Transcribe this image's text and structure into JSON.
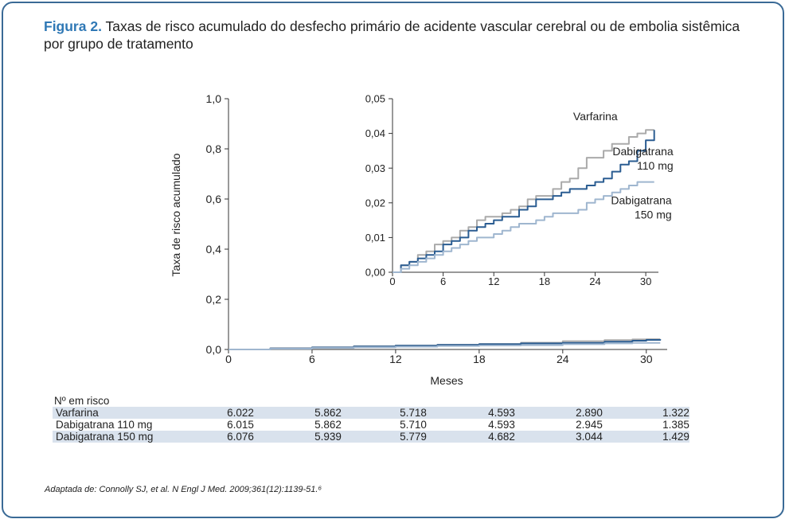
{
  "figure": {
    "label": "Figura 2.",
    "title": "Taxas de risco acumulado do desfecho primário de acidente vascular cerebral ou de embolia sistêmica por grupo de tratamento"
  },
  "colors": {
    "frame": "#3a6a96",
    "title_accent": "#2f78b5",
    "varfarina": "#aaaaaa",
    "dabigatrana_110": "#2b5d92",
    "dabigatrana_150": "#9fb6cf",
    "table_shade": "#d9e2ed"
  },
  "chart_data": [
    {
      "id": "main",
      "type": "line",
      "xlabel": "Meses",
      "ylabel": "Taxa de risco acumulado",
      "xlim": [
        0,
        31.5
      ],
      "ylim": [
        0,
        1.0
      ],
      "x_ticks": [
        0,
        6,
        12,
        18,
        24,
        30
      ],
      "x_tick_labels": [
        "0",
        "6",
        "12",
        "18",
        "24",
        "30"
      ],
      "y_ticks": [
        0,
        0.2,
        0.4,
        0.6,
        0.8,
        1.0
      ],
      "y_tick_labels": [
        "0,0",
        "0,2",
        "0,4",
        "0,6",
        "0,8",
        "1,0"
      ],
      "series": [
        {
          "name": "Varfarina",
          "color": "#aaaaaa",
          "x": [
            0,
            3,
            6,
            9,
            12,
            15,
            18,
            21,
            24,
            27,
            29,
            30,
            31
          ],
          "y": [
            0,
            0.005,
            0.009,
            0.013,
            0.016,
            0.019,
            0.022,
            0.027,
            0.033,
            0.037,
            0.04,
            0.041,
            0.041
          ]
        },
        {
          "name": "Dabigatrana 110 mg",
          "color": "#2b5d92",
          "x": [
            0,
            3,
            6,
            9,
            12,
            15,
            18,
            21,
            24,
            27,
            29,
            30,
            31
          ],
          "y": [
            0,
            0.004,
            0.008,
            0.012,
            0.015,
            0.018,
            0.021,
            0.024,
            0.026,
            0.031,
            0.035,
            0.038,
            0.041
          ]
        },
        {
          "name": "Dabigatrana 150 mg",
          "color": "#9fb6cf",
          "x": [
            0,
            3,
            6,
            9,
            12,
            15,
            18,
            21,
            24,
            27,
            29,
            30,
            31
          ],
          "y": [
            0,
            0.003,
            0.006,
            0.009,
            0.011,
            0.014,
            0.016,
            0.017,
            0.021,
            0.024,
            0.026,
            0.026,
            0.026
          ]
        }
      ]
    },
    {
      "id": "inset",
      "type": "line",
      "xlim": [
        0,
        31.5
      ],
      "ylim": [
        0,
        0.05
      ],
      "x_ticks": [
        0,
        6,
        12,
        18,
        24,
        30
      ],
      "x_tick_labels": [
        "0",
        "6",
        "12",
        "18",
        "24",
        "30"
      ],
      "y_ticks": [
        0,
        0.01,
        0.02,
        0.03,
        0.04,
        0.05
      ],
      "y_tick_labels": [
        "0,00",
        "0,01",
        "0,02",
        "0,03",
        "0,04",
        "0,05"
      ],
      "annotations": [
        {
          "series": "Varfarina",
          "lines": [
            "Varfarina"
          ]
        },
        {
          "series": "Dabigatrana 110 mg",
          "lines": [
            "Dabigatrana",
            "110 mg"
          ]
        },
        {
          "series": "Dabigatrana 150 mg",
          "lines": [
            "Dabigatrana",
            "150 mg"
          ]
        }
      ],
      "series": [
        {
          "name": "Varfarina",
          "color": "#aaaaaa",
          "x": [
            0,
            1,
            2,
            3,
            4,
            5,
            6,
            7,
            8,
            9,
            10,
            11,
            12,
            13,
            14,
            15,
            16,
            17,
            18,
            19,
            20,
            21,
            22,
            23,
            24,
            25,
            26,
            27,
            28,
            29,
            30,
            31
          ],
          "y": [
            0,
            0.002,
            0.003,
            0.005,
            0.006,
            0.008,
            0.009,
            0.01,
            0.012,
            0.013,
            0.015,
            0.016,
            0.016,
            0.017,
            0.018,
            0.019,
            0.021,
            0.022,
            0.022,
            0.024,
            0.026,
            0.027,
            0.03,
            0.033,
            0.033,
            0.035,
            0.037,
            0.037,
            0.039,
            0.04,
            0.041,
            0.041
          ]
        },
        {
          "name": "Dabigatrana 110 mg",
          "color": "#2b5d92",
          "x": [
            0,
            1,
            2,
            3,
            4,
            5,
            6,
            7,
            8,
            9,
            10,
            11,
            12,
            13,
            14,
            15,
            16,
            17,
            18,
            19,
            20,
            21,
            22,
            23,
            24,
            25,
            26,
            27,
            28,
            29,
            30,
            31
          ],
          "y": [
            0,
            0.002,
            0.003,
            0.004,
            0.005,
            0.006,
            0.008,
            0.009,
            0.01,
            0.012,
            0.013,
            0.014,
            0.015,
            0.016,
            0.016,
            0.018,
            0.019,
            0.021,
            0.021,
            0.022,
            0.023,
            0.024,
            0.024,
            0.025,
            0.026,
            0.027,
            0.029,
            0.031,
            0.032,
            0.035,
            0.038,
            0.041
          ]
        },
        {
          "name": "Dabigatrana 150 mg",
          "color": "#9fb6cf",
          "x": [
            0,
            1,
            2,
            3,
            4,
            5,
            6,
            7,
            8,
            9,
            10,
            11,
            12,
            13,
            14,
            15,
            16,
            17,
            18,
            19,
            20,
            21,
            22,
            23,
            24,
            25,
            26,
            27,
            28,
            29,
            30,
            31
          ],
          "y": [
            0,
            0.001,
            0.002,
            0.003,
            0.004,
            0.005,
            0.006,
            0.007,
            0.008,
            0.009,
            0.01,
            0.01,
            0.011,
            0.012,
            0.013,
            0.014,
            0.014,
            0.015,
            0.016,
            0.017,
            0.017,
            0.017,
            0.018,
            0.02,
            0.021,
            0.022,
            0.023,
            0.024,
            0.025,
            0.026,
            0.026,
            0.026
          ]
        }
      ]
    }
  ],
  "risk_table": {
    "title": "Nº em risco",
    "rows": [
      {
        "label": "Varfarina",
        "values": [
          "6.022",
          "5.862",
          "5.718",
          "4.593",
          "2.890",
          "1.322"
        ]
      },
      {
        "label": "Dabigatrana 110 mg",
        "values": [
          "6.015",
          "5.862",
          "5.710",
          "4.593",
          "2.945",
          "1.385"
        ]
      },
      {
        "label": "Dabigatrana 150 mg",
        "values": [
          "6.076",
          "5.939",
          "5.779",
          "4.682",
          "3.044",
          "1.429"
        ]
      }
    ]
  },
  "source": "Adaptada de: Connolly SJ, et al. N Engl J Med. 2009;361(12):1139-51.⁶"
}
